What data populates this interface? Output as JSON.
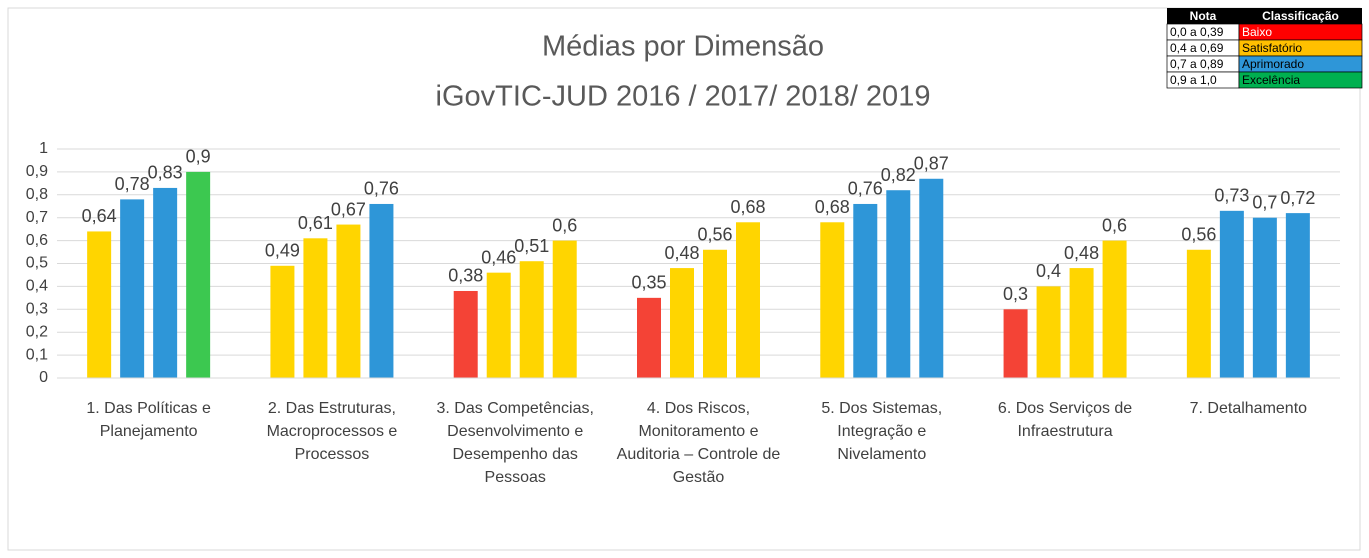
{
  "chart_data": {
    "type": "bar",
    "title": "Médias por Dimensão",
    "subtitle": "iGovTIC-JUD 2016 / 2017/ 2018/ 2019",
    "categories": [
      "1. Das Políticas e Planejamento",
      "2. Das Estruturas, Macroprocessos e Processos",
      "3. Das Competências, Desenvolvimento e Desempenho das Pessoas",
      "4. Dos Riscos, Monitoramento e Auditoria – Controle de Gestão",
      "5. Dos Sistemas, Integração e Nivelamento",
      "6. Dos Serviços de Infraestrutura",
      "7. Detalhamento"
    ],
    "series": [
      {
        "values": [
          0.64,
          0.49,
          0.38,
          0.35,
          0.68,
          0.3,
          0.56
        ],
        "value_labels": [
          "0,64",
          "0,49",
          "0,38",
          "0,35",
          "0,68",
          "0,3",
          "0,56"
        ],
        "colors": [
          "#ffd500",
          "#ffd500",
          "#f44336",
          "#f44336",
          "#ffd500",
          "#f44336",
          "#ffd500"
        ]
      },
      {
        "values": [
          0.78,
          0.61,
          0.46,
          0.48,
          0.76,
          0.4,
          0.73
        ],
        "value_labels": [
          "0,78",
          "0,61",
          "0,46",
          "0,48",
          "0,76",
          "0,4",
          "0,73"
        ],
        "colors": [
          "#2e96d8",
          "#ffd500",
          "#ffd500",
          "#ffd500",
          "#2e96d8",
          "#ffd500",
          "#2e96d8"
        ]
      },
      {
        "values": [
          0.83,
          0.67,
          0.51,
          0.56,
          0.82,
          0.48,
          0.7
        ],
        "value_labels": [
          "0,83",
          "0,67",
          "0,51",
          "0,56",
          "0,82",
          "0,48",
          "0,7"
        ],
        "colors": [
          "#2e96d8",
          "#ffd500",
          "#ffd500",
          "#ffd500",
          "#2e96d8",
          "#ffd500",
          "#2e96d8"
        ]
      },
      {
        "values": [
          0.9,
          0.76,
          0.6,
          0.68,
          0.87,
          0.6,
          0.72
        ],
        "value_labels": [
          "0,9",
          "0,76",
          "0,6",
          "0,68",
          "0,87",
          "0,6",
          "0,72"
        ],
        "colors": [
          "#3cc850",
          "#2e96d8",
          "#ffd500",
          "#ffd500",
          "#2e96d8",
          "#ffd500",
          "#2e96d8"
        ]
      }
    ],
    "ylim": [
      0,
      1
    ],
    "yticks": [
      0,
      {
        "value": 0.1,
        "label": "0,1"
      },
      {
        "value": 0.2,
        "label": "0,2"
      },
      {
        "value": 0.3,
        "label": "0,3"
      },
      {
        "value": 0.4,
        "label": "0,4"
      },
      {
        "value": 0.5,
        "label": "0,5"
      },
      {
        "value": 0.6,
        "label": "0,6"
      },
      {
        "value": 0.7,
        "label": "0,7"
      },
      {
        "value": 0.8,
        "label": "0,8"
      },
      {
        "value": 0.9,
        "label": "0,9"
      },
      1
    ],
    "grid": true,
    "classification_table": {
      "header": [
        "Nota",
        "Classificação"
      ],
      "rows": [
        [
          "0,0 a 0,39",
          "Baixo"
        ],
        [
          "0,4 a 0,69",
          "Satisfatório"
        ],
        [
          "0,7 a 0,89",
          "Aprimorado"
        ],
        [
          "0,9 a 1,0",
          "Excelência"
        ]
      ],
      "colors": [
        "#ff0000",
        "#ffc000",
        "#2e96d8",
        "#00b050"
      ]
    }
  }
}
